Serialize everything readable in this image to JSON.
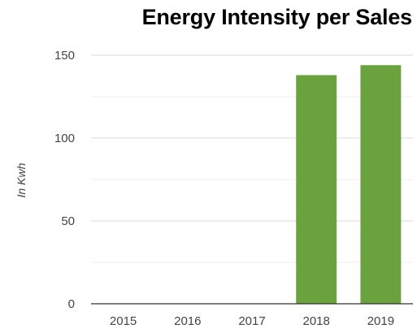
{
  "chart_data": {
    "type": "bar",
    "title": "Energy Intensity per Sales",
    "xlabel": "",
    "ylabel": "In Kwh",
    "categories": [
      "2015",
      "2016",
      "2017",
      "2018",
      "2019"
    ],
    "values": [
      0,
      0,
      0,
      138,
      144
    ],
    "ylim": [
      0,
      150
    ],
    "yticks": [
      "0",
      "50",
      "100",
      "150"
    ],
    "ytick_values": [
      0,
      50,
      100,
      150
    ],
    "grid": true,
    "bar_color": "#6aa23e",
    "grid_color": "#d9d9d9",
    "axis_color": "#333333"
  }
}
